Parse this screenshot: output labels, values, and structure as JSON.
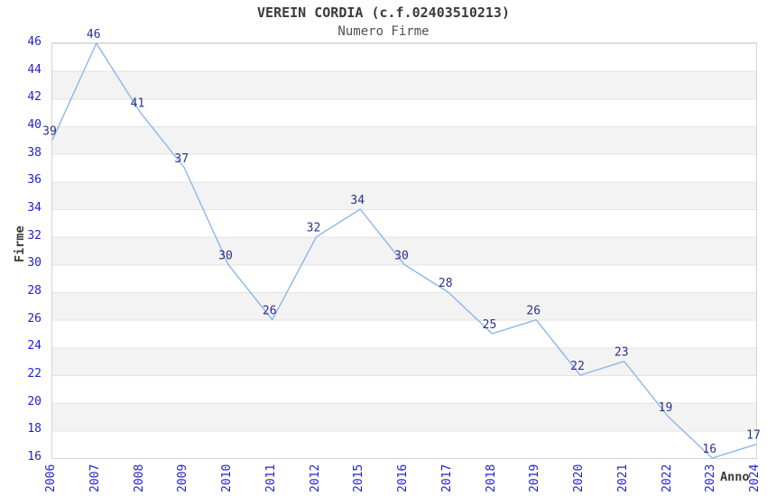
{
  "header": {
    "title": "VEREIN CORDIA (c.f.02403510213)",
    "subtitle": "Numero Firme"
  },
  "chart_data": {
    "type": "line",
    "title": "VEREIN CORDIA (c.f.02403510213)",
    "subtitle": "Numero Firme",
    "xlabel": "Anno",
    "ylabel": "Firme",
    "categories": [
      "2006",
      "2007",
      "2008",
      "2009",
      "2010",
      "2011",
      "2012",
      "2015",
      "2016",
      "2017",
      "2018",
      "2019",
      "2020",
      "2021",
      "2022",
      "2023",
      "2024"
    ],
    "values": [
      39,
      46,
      41,
      37,
      30,
      26,
      32,
      34,
      30,
      28,
      25,
      26,
      22,
      23,
      19,
      16,
      17
    ],
    "data_labels": [
      "39",
      "46",
      "41",
      "37",
      "30",
      "26",
      "32",
      "34",
      "30",
      "28",
      "25",
      "26",
      "22",
      "23",
      "19",
      "16",
      "17"
    ],
    "ylim": [
      16,
      46
    ],
    "y_ticks": [
      46,
      44,
      42,
      40,
      38,
      36,
      34,
      32,
      30,
      28,
      26,
      24,
      22,
      20,
      18,
      16
    ],
    "grid": "alternating-horizontal-bands",
    "legend": "none",
    "colors": {
      "line": "#8ab7e9",
      "tick_label": "#1f1fd6",
      "data_label": "#2e2e8f",
      "title": "#3a3a3a",
      "subtitle": "#4f4f4f",
      "band": "#f3f3f3",
      "grid_line": "#e3e3e3",
      "plot_border": "#d4d4d4",
      "background": "#ffffff"
    }
  }
}
